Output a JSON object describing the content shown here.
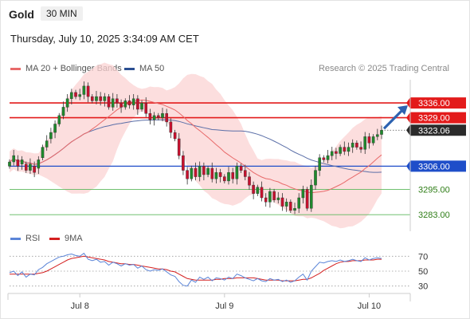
{
  "header": {
    "symbol": "Gold",
    "timeframe": "30 MIN",
    "datetime": "Thursday, July 10, 2025 3:34:09 AM CET",
    "credit": "Research © 2025 Trading Central"
  },
  "legend": {
    "ma20_label": "MA 20 + Bollinger Bands",
    "ma50_label": "MA 50",
    "rsi_label": "RSI",
    "rsi_ma_label": "9MA"
  },
  "colors": {
    "resistance": "#e31b1b",
    "support": "#1f4ec9",
    "target_line": "#5cb85c",
    "target_text": "#2e7d16",
    "candle_up": "#1e8a2c",
    "candle_down": "#c8102e",
    "ma20": "#e86a6a",
    "ma50": "#5b6fa8",
    "bollinger": "#fbd3d3",
    "rsi": "#5b85d8",
    "rsi_ma": "#d42020",
    "arrow": "#2d62b0",
    "current": "#2b2b2b"
  },
  "chart_data": [
    {
      "type": "candlestick",
      "x_ticks": [
        "Jul 8",
        "Jul 9",
        "Jul 10"
      ],
      "ylim": [
        3277,
        3347
      ],
      "levels": [
        {
          "label": "3336.00",
          "value": 3336.0,
          "kind": "resistance"
        },
        {
          "label": "3329.00",
          "value": 3329.0,
          "kind": "resistance"
        },
        {
          "label": "3323.06",
          "value": 3323.06,
          "kind": "current"
        },
        {
          "label": "3306.00",
          "value": 3306.0,
          "kind": "pivot"
        },
        {
          "label": "3295.00",
          "value": 3295.0,
          "kind": "target"
        },
        {
          "label": "3283.00",
          "value": 3283.0,
          "kind": "target"
        }
      ],
      "close": [
        3308,
        3311,
        3306,
        3309,
        3304,
        3307,
        3303,
        3309,
        3315,
        3318,
        3322,
        3326,
        3330,
        3334,
        3338,
        3341,
        3339,
        3340,
        3344,
        3339,
        3337,
        3339,
        3337,
        3339,
        3334,
        3338,
        3336,
        3334,
        3337,
        3335,
        3338,
        3333,
        3336,
        3331,
        3328,
        3330,
        3329,
        3331,
        3327,
        3322,
        3319,
        3311,
        3304,
        3300,
        3305,
        3301,
        3306,
        3302,
        3305,
        3300,
        3303,
        3301,
        3299,
        3303,
        3300,
        3306,
        3304,
        3301,
        3297,
        3293,
        3296,
        3291,
        3289,
        3294,
        3290,
        3291,
        3287,
        3289,
        3285,
        3286,
        3291,
        3295,
        3286,
        3297,
        3304,
        3310,
        3309,
        3311,
        3313,
        3312,
        3315,
        3313,
        3315,
        3317,
        3315,
        3314,
        3320,
        3317,
        3320,
        3321,
        3323.06
      ],
      "open_offset": [
        -2,
        -3,
        3,
        -2,
        3,
        -3,
        3,
        -4,
        -5,
        -3,
        -3,
        -4,
        -4,
        -4,
        -4,
        -3,
        2,
        -1,
        -4,
        5,
        2,
        -2,
        2,
        -2,
        5,
        -4,
        2,
        2,
        -3,
        2,
        -3,
        5,
        -3,
        5,
        3,
        -2,
        1,
        -2,
        4,
        5,
        3,
        8,
        7,
        4,
        -5,
        4,
        -5,
        4,
        -3,
        5,
        -3,
        2,
        2,
        -4,
        3,
        -6,
        2,
        3,
        4,
        4,
        -3,
        5,
        2,
        -5,
        4,
        -1,
        4,
        -2,
        4,
        -1,
        -5,
        -4,
        9,
        -11,
        -7,
        -6,
        1,
        -2,
        -2,
        1,
        -3,
        2,
        -2,
        -2,
        2,
        1,
        -6,
        3,
        -3,
        -1,
        -2
      ]
    },
    {
      "type": "line",
      "title": "RSI",
      "ylim": [
        20,
        80
      ],
      "ticks": [
        "70",
        "50",
        "30"
      ],
      "rsi": [
        48,
        50,
        44,
        49,
        42,
        46,
        45,
        52,
        55,
        60,
        63,
        66,
        69,
        70,
        72,
        73,
        71,
        70,
        74,
        66,
        64,
        66,
        62,
        63,
        58,
        62,
        60,
        57,
        60,
        58,
        59,
        54,
        57,
        52,
        50,
        52,
        51,
        53,
        49,
        45,
        43,
        36,
        31,
        30,
        38,
        35,
        42,
        39,
        42,
        37,
        41,
        40,
        38,
        42,
        40,
        46,
        44,
        41,
        39,
        37,
        40,
        37,
        36,
        40,
        38,
        39,
        36,
        38,
        35,
        37,
        42,
        46,
        38,
        50,
        56,
        62,
        61,
        63,
        64,
        63,
        65,
        63,
        64,
        66,
        64,
        63,
        68,
        65,
        67,
        68,
        67
      ],
      "rsi_ma": [
        46,
        46,
        46,
        46,
        46,
        46,
        46,
        47,
        48,
        50,
        53,
        56,
        59,
        62,
        65,
        67,
        68,
        69,
        70,
        69,
        68,
        67,
        66,
        65,
        63,
        62,
        61,
        60,
        60,
        59,
        59,
        58,
        57,
        56,
        55,
        54,
        53,
        53,
        52,
        50,
        49,
        46,
        43,
        40,
        39,
        38,
        38,
        38,
        38,
        38,
        39,
        39,
        40,
        40,
        40,
        41,
        41,
        41,
        41,
        41,
        40,
        39,
        38,
        38,
        38,
        38,
        37,
        37,
        37,
        37,
        38,
        39,
        39,
        41,
        44,
        47,
        51,
        54,
        57,
        60,
        62,
        63,
        63,
        64,
        64,
        64,
        65,
        65,
        65,
        66,
        66
      ]
    }
  ]
}
